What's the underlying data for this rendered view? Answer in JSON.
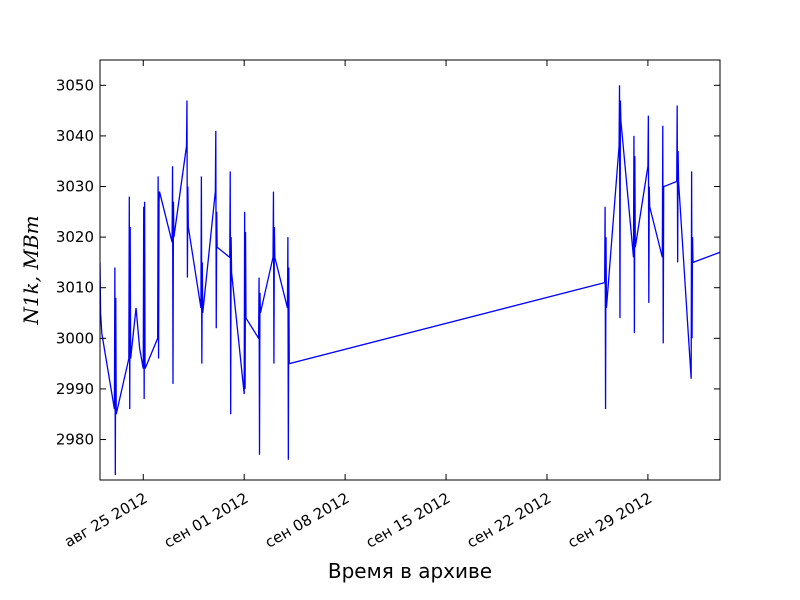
{
  "chart_data": {
    "type": "line",
    "title": "",
    "xlabel": "Время в архиве",
    "ylabel": "N1k, MBm",
    "x_type": "date",
    "xlim": [
      "2012-08-22",
      "2012-10-04"
    ],
    "ylim": [
      2972,
      3055
    ],
    "x_ticks": [
      {
        "date": "2012-08-25",
        "label": "авг 25 2012"
      },
      {
        "date": "2012-09-01",
        "label": "сен 01 2012"
      },
      {
        "date": "2012-09-08",
        "label": "сен 08 2012"
      },
      {
        "date": "2012-09-15",
        "label": "сен 15 2012"
      },
      {
        "date": "2012-09-22",
        "label": "сен 22 2012"
      },
      {
        "date": "2012-09-29",
        "label": "сен 29 2012"
      }
    ],
    "y_ticks": [
      2980,
      2990,
      3000,
      3010,
      3020,
      3030,
      3040,
      3050
    ],
    "grid": false,
    "legend": "none",
    "color": "#0000ff",
    "series": [
      {
        "points": [
          [
            "2012-08-22T00:00",
            3015
          ],
          [
            "2012-08-22T01:00",
            3005
          ],
          [
            "2012-08-22T02:00",
            3003
          ],
          [
            "2012-08-22T03:00",
            3001
          ],
          [
            "2012-08-23T00:00",
            2986
          ],
          [
            "2012-08-23T00:45",
            3014
          ],
          [
            "2012-08-23T01:30",
            2973
          ],
          [
            "2012-08-23T02:15",
            3008
          ],
          [
            "2012-08-23T03:00",
            2985
          ],
          [
            "2012-08-24T00:00",
            2996
          ],
          [
            "2012-08-24T00:45",
            3028
          ],
          [
            "2012-08-24T01:30",
            2986
          ],
          [
            "2012-08-24T02:15",
            3022
          ],
          [
            "2012-08-24T03:00",
            2996
          ],
          [
            "2012-08-24T12:00",
            3006
          ],
          [
            "2012-08-24T18:00",
            2998
          ],
          [
            "2012-08-25T00:00",
            2994
          ],
          [
            "2012-08-25T00:45",
            3026
          ],
          [
            "2012-08-25T01:30",
            2988
          ],
          [
            "2012-08-25T02:15",
            3027
          ],
          [
            "2012-08-25T03:00",
            2994
          ],
          [
            "2012-08-26T00:00",
            3000
          ],
          [
            "2012-08-26T00:45",
            3032
          ],
          [
            "2012-08-26T01:30",
            2996
          ],
          [
            "2012-08-26T02:15",
            3027
          ],
          [
            "2012-08-26T03:00",
            3029
          ],
          [
            "2012-08-27T00:00",
            3019
          ],
          [
            "2012-08-27T00:45",
            3034
          ],
          [
            "2012-08-27T01:30",
            2991
          ],
          [
            "2012-08-27T02:15",
            3027
          ],
          [
            "2012-08-27T03:00",
            3020
          ],
          [
            "2012-08-28T00:00",
            3038
          ],
          [
            "2012-08-28T00:45",
            3047
          ],
          [
            "2012-08-28T01:30",
            3012
          ],
          [
            "2012-08-28T02:15",
            3030
          ],
          [
            "2012-08-28T03:00",
            3022
          ],
          [
            "2012-08-29T00:00",
            3006
          ],
          [
            "2012-08-29T00:45",
            3032
          ],
          [
            "2012-08-29T01:30",
            2995
          ],
          [
            "2012-08-29T02:15",
            3015
          ],
          [
            "2012-08-29T03:00",
            3005
          ],
          [
            "2012-08-30T00:00",
            3029
          ],
          [
            "2012-08-30T00:45",
            3041
          ],
          [
            "2012-08-30T01:30",
            3002
          ],
          [
            "2012-08-30T02:15",
            3025
          ],
          [
            "2012-08-30T03:00",
            3018
          ],
          [
            "2012-08-31T00:00",
            3016
          ],
          [
            "2012-08-31T00:45",
            3033
          ],
          [
            "2012-08-31T01:30",
            2985
          ],
          [
            "2012-08-31T02:15",
            3020
          ],
          [
            "2012-08-31T03:00",
            3013
          ],
          [
            "2012-09-01T00:00",
            2989
          ],
          [
            "2012-09-01T00:45",
            3025
          ],
          [
            "2012-09-01T01:30",
            2990
          ],
          [
            "2012-09-01T02:15",
            3021
          ],
          [
            "2012-09-01T03:00",
            3004
          ],
          [
            "2012-09-02T00:00",
            3000
          ],
          [
            "2012-09-02T00:45",
            3012
          ],
          [
            "2012-09-02T01:30",
            2977
          ],
          [
            "2012-09-02T02:15",
            3009
          ],
          [
            "2012-09-02T03:00",
            3005
          ],
          [
            "2012-09-03T00:00",
            3016
          ],
          [
            "2012-09-03T00:45",
            3029
          ],
          [
            "2012-09-03T01:30",
            2995
          ],
          [
            "2012-09-03T02:15",
            3022
          ],
          [
            "2012-09-03T03:00",
            3016
          ],
          [
            "2012-09-04T00:00",
            3006
          ],
          [
            "2012-09-04T00:45",
            3020
          ],
          [
            "2012-09-04T01:30",
            2976
          ],
          [
            "2012-09-04T02:15",
            3014
          ],
          [
            "2012-09-04T03:00",
            2995
          ],
          [
            "2012-09-26T00:00",
            3011
          ],
          [
            "2012-09-26T00:45",
            3026
          ],
          [
            "2012-09-26T01:30",
            2986
          ],
          [
            "2012-09-26T02:15",
            3020
          ],
          [
            "2012-09-26T03:00",
            3006
          ],
          [
            "2012-09-27T00:00",
            3038
          ],
          [
            "2012-09-27T00:45",
            3050
          ],
          [
            "2012-09-27T01:30",
            3004
          ],
          [
            "2012-09-27T02:15",
            3047
          ],
          [
            "2012-09-27T03:00",
            3043
          ],
          [
            "2012-09-28T00:00",
            3016
          ],
          [
            "2012-09-28T00:45",
            3040
          ],
          [
            "2012-09-28T01:30",
            3001
          ],
          [
            "2012-09-28T02:15",
            3036
          ],
          [
            "2012-09-28T03:00",
            3018
          ],
          [
            "2012-09-29T00:00",
            3034
          ],
          [
            "2012-09-29T00:45",
            3044
          ],
          [
            "2012-09-29T01:30",
            3007
          ],
          [
            "2012-09-29T02:15",
            3030
          ],
          [
            "2012-09-29T03:00",
            3026
          ],
          [
            "2012-09-30T00:00",
            3016
          ],
          [
            "2012-09-30T00:45",
            3042
          ],
          [
            "2012-09-30T01:30",
            2999
          ],
          [
            "2012-09-30T02:15",
            3030
          ],
          [
            "2012-09-30T03:00",
            3030
          ],
          [
            "2012-10-01T00:00",
            3031
          ],
          [
            "2012-10-01T00:45",
            3046
          ],
          [
            "2012-10-01T01:30",
            3015
          ],
          [
            "2012-10-01T02:15",
            3037
          ],
          [
            "2012-10-01T03:00",
            3031
          ],
          [
            "2012-10-02T00:00",
            2992
          ],
          [
            "2012-10-02T00:45",
            3033
          ],
          [
            "2012-10-02T01:30",
            3000
          ],
          [
            "2012-10-02T02:15",
            3020
          ],
          [
            "2012-10-02T03:00",
            3015
          ],
          [
            "2012-10-04T00:00",
            3017
          ]
        ]
      }
    ]
  }
}
